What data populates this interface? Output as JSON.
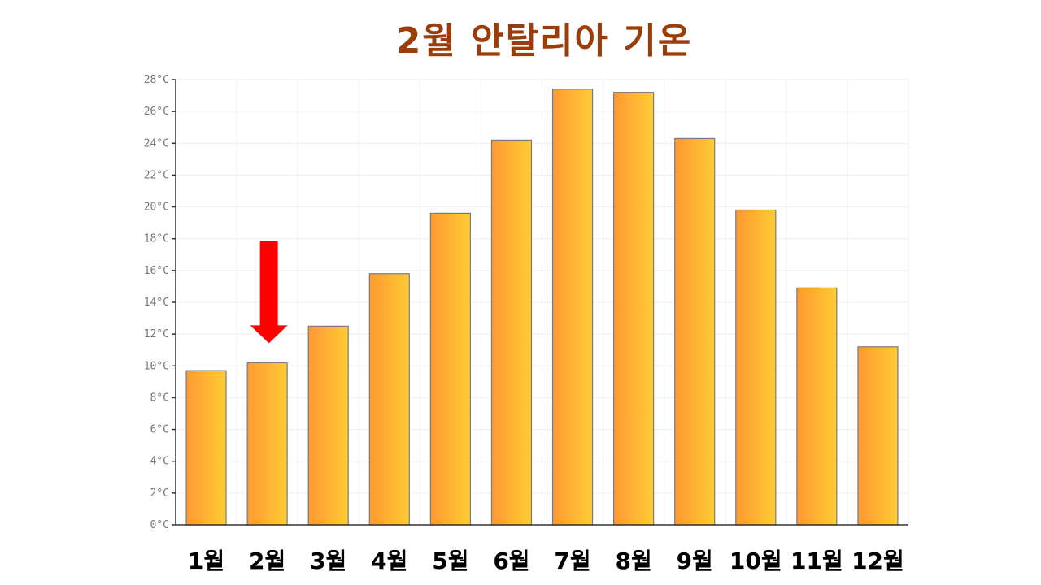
{
  "chart_data": {
    "type": "bar",
    "title": "2월 안탈리아 기온",
    "categories": [
      "1월",
      "2월",
      "3월",
      "4월",
      "5월",
      "6월",
      "7월",
      "8월",
      "9월",
      "10월",
      "11월",
      "12월"
    ],
    "values": [
      9.7,
      10.2,
      12.5,
      15.8,
      19.6,
      24.2,
      27.4,
      27.2,
      24.3,
      19.8,
      14.9,
      11.2
    ],
    "ylim": [
      0,
      28
    ],
    "yticks": [
      "0°C",
      "2°C",
      "4°C",
      "6°C",
      "8°C",
      "10°C",
      "12°C",
      "14°C",
      "16°C",
      "18°C",
      "20°C",
      "22°C",
      "24°C",
      "26°C",
      "28°C"
    ],
    "grid": true,
    "highlight_category": "2월",
    "colors": {
      "bar_start": "#ff9933",
      "bar_end": "#ffcc33",
      "bar_border": "#7a7a7a",
      "title": "#9a3d0a",
      "arrow": "#ff0000"
    }
  }
}
